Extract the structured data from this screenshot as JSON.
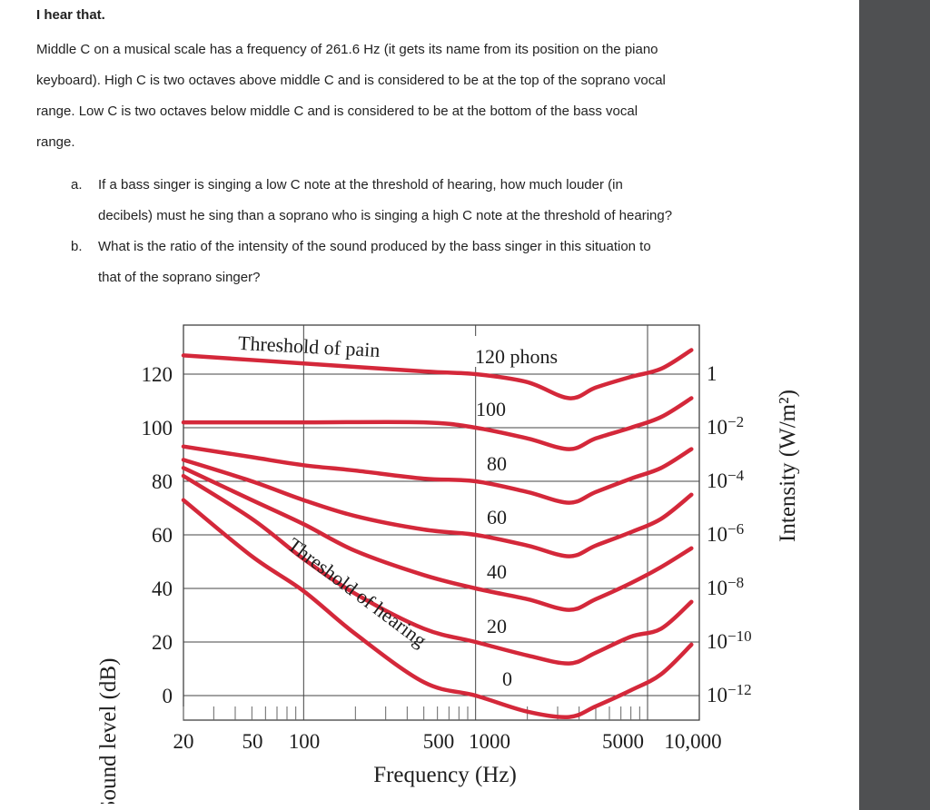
{
  "problem": {
    "title": "I hear that.",
    "paragraph_lines": [
      "Middle C on a musical scale has a frequency of 261.6 Hz  (it gets its name from its position on the piano",
      "keyboard).  High C is two octaves above middle C and is considered to be at the top of the soprano vocal",
      "range.  Low C is two octaves below middle C and is considered to be at the bottom of the bass vocal",
      "range."
    ],
    "questions": [
      {
        "marker": "a.",
        "lines": [
          "If a bass singer is singing a low C note at the threshold of hearing, how much louder (in",
          "decibels) must he sing than a soprano who is singing a high C note at the threshold of hearing?"
        ]
      },
      {
        "marker": "b.",
        "lines": [
          "What is the ratio of the intensity of the sound produced by the bass singer in this situation to",
          "that of the soprano singer?"
        ]
      }
    ]
  },
  "chart_data": {
    "type": "line",
    "xlabel": "Frequency (Hz)",
    "ylabel": "Sound level (dB)",
    "y2label": "Intensity (W/m²)",
    "x_scale": "log",
    "x_ticklabels": [
      "20",
      "50",
      "100",
      "500",
      "1000",
      "5000",
      "10,000"
    ],
    "y_ticklabels": [
      "0",
      "20",
      "40",
      "60",
      "80",
      "100",
      "120"
    ],
    "y2_ticklabels": [
      {
        "base": "1",
        "exp": ""
      },
      {
        "base": "10",
        "exp": "−2"
      },
      {
        "base": "10",
        "exp": "−4"
      },
      {
        "base": "10",
        "exp": "−6"
      },
      {
        "base": "10",
        "exp": "−8"
      },
      {
        "base": "10",
        "exp": "−10"
      },
      {
        "base": "10",
        "exp": "−12"
      }
    ],
    "xlim": [
      20,
      20000
    ],
    "ylim": [
      -10,
      135
    ],
    "grid": true,
    "line_color": "#d4283a",
    "annotations": {
      "top_curve": "Threshold of pain",
      "bottom_curve": "Threshold of hearing",
      "phon_labels": [
        "120 phons",
        "100",
        "80",
        "60",
        "40",
        "20",
        "0"
      ]
    },
    "series": [
      {
        "x": [
          20,
          100,
          500,
          1000,
          2000,
          3500,
          5000,
          8000,
          12000,
          18000
        ],
        "y": [
          127,
          124,
          121,
          120,
          117,
          111,
          115,
          119,
          122,
          129
        ]
      },
      {
        "x": [
          20,
          100,
          500,
          1000,
          2000,
          3500,
          5000,
          8000,
          12000,
          18000
        ],
        "y": [
          102,
          102,
          102,
          100,
          96,
          92,
          96,
          100,
          104,
          111
        ]
      },
      {
        "x": [
          20,
          50,
          100,
          200,
          500,
          1000,
          2000,
          3500,
          5000,
          8000,
          12000,
          18000
        ],
        "y": [
          93,
          89,
          86,
          84,
          81,
          80,
          76,
          72,
          76,
          81,
          85,
          92
        ]
      },
      {
        "x": [
          20,
          50,
          100,
          200,
          500,
          1000,
          2000,
          3500,
          5000,
          8000,
          12000,
          18000
        ],
        "y": [
          88,
          80,
          73,
          67,
          62,
          60,
          56,
          52,
          56,
          61,
          66,
          75
        ]
      },
      {
        "x": [
          20,
          50,
          100,
          200,
          500,
          1000,
          2000,
          3500,
          5000,
          8000,
          12000,
          18000
        ],
        "y": [
          85,
          73,
          64,
          54,
          45,
          40,
          36,
          32,
          36,
          42,
          48,
          55
        ]
      },
      {
        "x": [
          20,
          50,
          100,
          200,
          500,
          1000,
          2000,
          3500,
          5000,
          8000,
          12000,
          18000
        ],
        "y": [
          82,
          66,
          51,
          38,
          25,
          20,
          15,
          12,
          16,
          22,
          25,
          35
        ]
      },
      {
        "x": [
          20,
          50,
          100,
          200,
          500,
          1000,
          2000,
          3500,
          5000,
          8000,
          12000,
          18000
        ],
        "y": [
          73,
          52,
          39,
          23,
          5,
          0,
          -6,
          -8,
          -4,
          2,
          8,
          19
        ]
      }
    ]
  }
}
